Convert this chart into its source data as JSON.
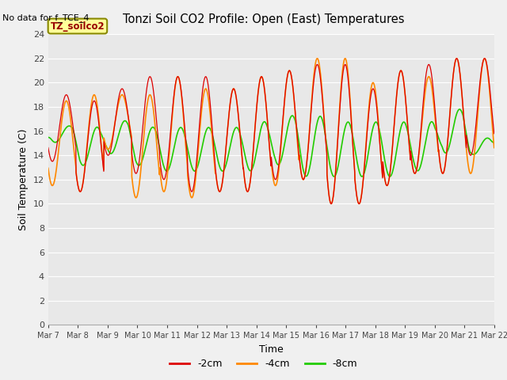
{
  "title": "Tonzi Soil CO2 Profile: Open (East) Temperatures",
  "no_data_text": "No data for f_TCE_4",
  "legend_box_text": "TZ_soilco2",
  "ylabel": "Soil Temperature (C)",
  "xlabel": "Time",
  "ylim": [
    0,
    24
  ],
  "yticks": [
    0,
    2,
    4,
    6,
    8,
    10,
    12,
    14,
    16,
    18,
    20,
    22,
    24
  ],
  "bg_color": "#e8e8e8",
  "fig_color": "#f0f0f0",
  "line_colors": {
    "2cm": "#dd0000",
    "4cm": "#ff8800",
    "8cm": "#22cc00"
  },
  "n_days": 16,
  "samples_per_day": 144,
  "x_tick_labels": [
    "Mar 7",
    "Mar 8",
    "Mar 9",
    "Mar 10",
    "Mar 11",
    "Mar 12",
    "Mar 13",
    "Mar 14",
    "Mar 15",
    "Mar 16",
    "Mar 17",
    "Mar 18",
    "Mar 19",
    "Mar 20",
    "Mar 21",
    "Mar 22"
  ],
  "peak_2cm": [
    19.0,
    18.5,
    19.5,
    20.5,
    20.5,
    20.5,
    19.5,
    20.5,
    21.0,
    21.5,
    21.5,
    19.5,
    21.0,
    21.5,
    22.0,
    22.0
  ],
  "trough_2cm": [
    13.5,
    11.0,
    14.0,
    12.5,
    12.0,
    11.0,
    11.0,
    11.0,
    12.0,
    12.0,
    10.0,
    10.0,
    11.5,
    12.5,
    12.5,
    14.0
  ],
  "peak_4cm": [
    18.5,
    19.0,
    19.0,
    19.0,
    20.5,
    19.5,
    19.5,
    20.5,
    21.0,
    22.0,
    22.0,
    20.0,
    21.0,
    20.5,
    22.0,
    22.0
  ],
  "trough_4cm": [
    11.5,
    11.0,
    14.5,
    10.5,
    11.0,
    10.5,
    11.0,
    11.0,
    11.5,
    12.0,
    10.0,
    10.0,
    11.5,
    12.5,
    12.5,
    12.5
  ],
  "peak_8cm": [
    16.5,
    16.5,
    17.0,
    16.5,
    16.5,
    16.5,
    16.5,
    17.0,
    17.5,
    17.5,
    17.0,
    17.0,
    17.0,
    17.0,
    18.0,
    15.5
  ],
  "trough_8cm": [
    15.0,
    13.0,
    14.0,
    13.0,
    12.5,
    12.5,
    12.5,
    12.5,
    13.0,
    12.0,
    12.0,
    12.0,
    12.0,
    12.5,
    14.0,
    14.0
  ],
  "peak_phase": 0.65,
  "trough_phase": 0.15,
  "green_peak_phase": 0.75,
  "green_trough_phase": 0.25
}
